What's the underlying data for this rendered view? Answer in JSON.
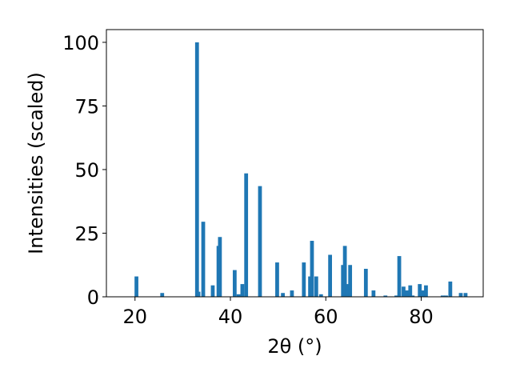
{
  "chart_data": {
    "type": "bar",
    "xlabel": "2θ (°)",
    "ylabel": "Intensities (scaled)",
    "xlim": [
      14,
      93
    ],
    "ylim": [
      0,
      105
    ],
    "xticks": [
      20,
      40,
      60,
      80
    ],
    "yticks": [
      0,
      25,
      50,
      75,
      100
    ],
    "grid": false,
    "bar_color": "#1f77b4",
    "bar_width": 0.8,
    "series": [
      {
        "x": [
          20.3,
          25.7,
          33.0,
          33.3,
          34.3,
          36.3,
          37.5,
          37.8,
          40.9,
          41.7,
          42.5,
          43.3,
          46.2,
          49.8,
          51.0,
          52.9,
          55.4,
          56.7,
          57.1,
          58.0,
          59.0,
          60.9,
          63.6,
          64.0,
          64.4,
          65.1,
          68.4,
          70.0,
          72.5,
          74.8,
          75.4,
          76.3,
          77.0,
          77.7,
          78.2,
          79.7,
          80.3,
          81.0,
          84.5,
          85.2,
          86.1,
          88.3,
          89.3
        ],
        "values": [
          8,
          1.5,
          100,
          2,
          29.5,
          4.5,
          20,
          23.5,
          10.5,
          1,
          5,
          48.5,
          43.5,
          13.5,
          1.5,
          2.5,
          13.5,
          8,
          22,
          8,
          1,
          16.5,
          12.5,
          20,
          5,
          12.5,
          11,
          2.5,
          0.5,
          0.5,
          16,
          4,
          2.5,
          4.5,
          0.5,
          5,
          2.5,
          4.5,
          0.5,
          0.5,
          6,
          1.5,
          1.5
        ]
      }
    ]
  }
}
